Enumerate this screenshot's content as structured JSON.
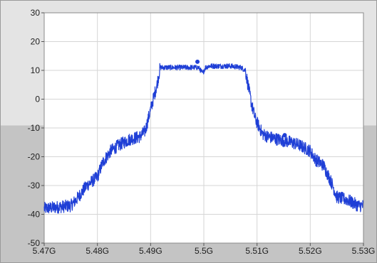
{
  "chart_data": {
    "type": "line",
    "title": "",
    "xlabel": "",
    "ylabel": "",
    "xlim": [
      5.47,
      5.53
    ],
    "ylim": [
      -50,
      30
    ],
    "grid": true,
    "x_ticks": [
      5.47,
      5.48,
      5.49,
      5.5,
      5.51,
      5.52,
      5.53
    ],
    "x_tick_labels": [
      "5.47G",
      "5.48G",
      "5.49G",
      "5.5G",
      "5.51G",
      "5.52G",
      "5.53G"
    ],
    "y_ticks": [
      30,
      20,
      10,
      0,
      -10,
      -20,
      -30,
      -40,
      -50
    ],
    "y_tick_labels": [
      "30",
      "20",
      "10",
      "0",
      "-10",
      "-20",
      "-30",
      "-40",
      "-50"
    ],
    "series": [
      {
        "color": "#1f3fd6",
        "x": [
          5.47,
          5.4725,
          5.475,
          5.476,
          5.478,
          5.48,
          5.481,
          5.4825,
          5.484,
          5.486,
          5.488,
          5.489,
          5.4898,
          5.4905,
          5.4912,
          5.4918,
          5.493,
          5.495,
          5.497,
          5.499,
          5.4998,
          5.5003,
          5.501,
          5.503,
          5.505,
          5.507,
          5.5078,
          5.5083,
          5.509,
          5.5097,
          5.5105,
          5.511,
          5.512,
          5.514,
          5.5165,
          5.518,
          5.52,
          5.521,
          5.5225,
          5.524,
          5.525,
          5.527,
          5.528,
          5.529,
          5.53
        ],
        "values": [
          -38,
          -37.5,
          -37,
          -35,
          -30,
          -27,
          -22,
          -18,
          -16,
          -14,
          -13,
          -11,
          -5,
          0,
          5,
          11,
          11,
          11,
          11,
          11,
          9,
          11,
          11.5,
          11.5,
          11.5,
          11,
          10,
          5,
          -2,
          -7,
          -10,
          -12,
          -13,
          -14,
          -15,
          -16,
          -18,
          -21,
          -23,
          -29,
          -34,
          -35,
          -36,
          -37,
          -37
        ]
      }
    ],
    "markers": [
      {
        "x": 5.4988,
        "y": 13
      },
      {
        "x": 5.5152,
        "y": -12.5
      }
    ]
  }
}
